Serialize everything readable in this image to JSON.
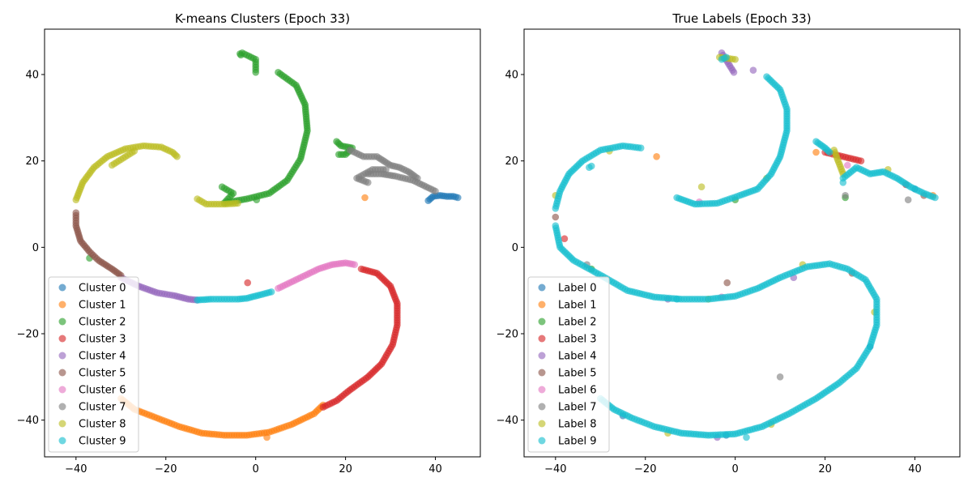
{
  "chart_data": [
    {
      "type": "scatter",
      "title": "K-means Clusters (Epoch 33)",
      "xlabel": "",
      "ylabel": "",
      "xlim": [
        -47,
        50
      ],
      "ylim": [
        -48.5,
        50.5
      ],
      "xticks": [
        -40,
        -20,
        0,
        20,
        40
      ],
      "yticks": [
        -40,
        -20,
        0,
        20,
        40
      ],
      "xtick_labels": [
        "−40",
        "−20",
        "0",
        "20",
        "40"
      ],
      "ytick_labels": [
        "−40",
        "−20",
        "0",
        "20",
        "40"
      ],
      "legend_placement": "lower-left",
      "grid": false,
      "series": [
        {
          "name": "Cluster 0",
          "color": "#1f77b4",
          "points": [
            [
              38.4,
              10.8
            ],
            [
              39.5,
              11.8
            ],
            [
              41,
              12
            ],
            [
              42.5,
              11.8
            ],
            [
              44,
              11.8
            ],
            [
              45,
              11.5
            ]
          ]
        },
        {
          "name": "Cluster 1",
          "color": "#ff7f0e",
          "points": [
            [
              24.3,
              11.5
            ],
            [
              -30,
              -35
            ],
            [
              -27,
              -37.5
            ],
            [
              -22,
              -39.5
            ],
            [
              -17,
              -41.5
            ],
            [
              -12,
              -43
            ],
            [
              -7,
              -43.5
            ],
            [
              -2,
              -43.5
            ],
            [
              3,
              -42.8
            ],
            [
              8,
              -41
            ],
            [
              13,
              -38.5
            ],
            [
              15,
              -36.5
            ],
            [
              2.5,
              -44
            ]
          ]
        },
        {
          "name": "Cluster 2",
          "color": "#2ca02c",
          "points": [
            [
              -3.3,
              44.5
            ],
            [
              -3.5,
              44.8
            ],
            [
              -3,
              45
            ],
            [
              0,
              43.5
            ],
            [
              0,
              40.5
            ],
            [
              -7.5,
              14
            ],
            [
              -5,
              12.5
            ],
            [
              -7,
              10.3
            ],
            [
              -2,
              11.2
            ],
            [
              3,
              12.5
            ],
            [
              7,
              15.5
            ],
            [
              10,
              20.5
            ],
            [
              11.5,
              27
            ],
            [
              11,
              33
            ],
            [
              9,
              37.5
            ],
            [
              5,
              40.5
            ],
            [
              18,
              24.5
            ],
            [
              19,
              23.5
            ],
            [
              21.5,
              23
            ],
            [
              20,
              21.5
            ],
            [
              18.5,
              21.5
            ],
            [
              -37,
              -2.5
            ],
            [
              0.2,
              11
            ]
          ]
        },
        {
          "name": "Cluster 3",
          "color": "#d62728",
          "points": [
            [
              -1.8,
              -8.2
            ],
            [
              23.5,
              -5
            ],
            [
              27,
              -6
            ],
            [
              30,
              -9
            ],
            [
              31.5,
              -13
            ],
            [
              31.5,
              -18
            ],
            [
              30.5,
              -22.5
            ],
            [
              28,
              -27
            ],
            [
              25,
              -30
            ],
            [
              21,
              -33
            ],
            [
              18,
              -35.5
            ],
            [
              15,
              -37
            ]
          ]
        },
        {
          "name": "Cluster 4",
          "color": "#9467bd",
          "points": [
            [
              -30,
              -7
            ],
            [
              -26,
              -9
            ],
            [
              -22,
              -10.5
            ],
            [
              -18,
              -11.2
            ],
            [
              -15,
              -12
            ],
            [
              -13,
              -12.2
            ]
          ]
        },
        {
          "name": "Cluster 5",
          "color": "#8c564b",
          "points": [
            [
              -40,
              8
            ],
            [
              -40,
              5
            ],
            [
              -39,
              1.5
            ],
            [
              -37,
              -1
            ],
            [
              -35,
              -3
            ],
            [
              -32,
              -5
            ],
            [
              -30,
              -6.5
            ]
          ]
        },
        {
          "name": "Cluster 6",
          "color": "#e377c2",
          "points": [
            [
              5,
              -9.5
            ],
            [
              8,
              -8
            ],
            [
              11,
              -6.5
            ],
            [
              14,
              -5
            ],
            [
              17,
              -4
            ],
            [
              20,
              -3.6
            ],
            [
              22,
              -4
            ]
          ]
        },
        {
          "name": "Cluster 7",
          "color": "#7f7f7f",
          "points": [
            [
              21,
              22.5
            ],
            [
              24,
              21
            ],
            [
              27,
              21
            ],
            [
              30,
              19
            ],
            [
              32,
              18.5
            ],
            [
              34,
              17.5
            ],
            [
              36,
              16
            ],
            [
              25,
              17
            ],
            [
              28,
              17
            ],
            [
              31,
              16.5
            ],
            [
              35,
              15.5
            ],
            [
              38,
              14
            ],
            [
              40,
              13
            ],
            [
              25,
              15
            ],
            [
              22.5,
              16
            ],
            [
              26,
              18
            ],
            [
              29,
              18
            ]
          ]
        },
        {
          "name": "Cluster 8",
          "color": "#bcbd22",
          "points": [
            [
              -40,
              11
            ],
            [
              -38.5,
              15
            ],
            [
              -36,
              18.5
            ],
            [
              -33,
              21
            ],
            [
              -29,
              22.8
            ],
            [
              -25,
              23.5
            ],
            [
              -21,
              23.2
            ],
            [
              -18.5,
              22
            ],
            [
              -17.5,
              21
            ],
            [
              -32,
              19
            ],
            [
              -27,
              22.3
            ],
            [
              -13,
              11.2
            ],
            [
              -11,
              10
            ],
            [
              -7,
              10
            ],
            [
              -4,
              10.2
            ]
          ]
        },
        {
          "name": "Cluster 9",
          "color": "#17becf",
          "points": [
            [
              -13,
              -12.2
            ],
            [
              -10,
              -12
            ],
            [
              -7,
              -12
            ],
            [
              -4,
              -12
            ],
            [
              -2,
              -11.8
            ],
            [
              1,
              -11
            ],
            [
              3.5,
              -10.3
            ]
          ]
        }
      ]
    },
    {
      "type": "scatter",
      "title": "True Labels (Epoch 33)",
      "xlabel": "",
      "ylabel": "",
      "xlim": [
        -47,
        50
      ],
      "ylim": [
        -48.5,
        50.5
      ],
      "xticks": [
        -40,
        -20,
        0,
        20,
        40
      ],
      "yticks": [
        -40,
        -20,
        0,
        20,
        40
      ],
      "xtick_labels": [
        "−40",
        "−20",
        "0",
        "20",
        "40"
      ],
      "ytick_labels": [
        "−40",
        "−20",
        "0",
        "20",
        "40"
      ],
      "legend_placement": "lower-left",
      "grid": false,
      "series": [
        {
          "name": "Label 0",
          "color": "#1f77b4",
          "points": [
            [
              -2,
              -43.5
            ],
            [
              30,
              -23
            ],
            [
              -25,
              -39
            ],
            [
              40,
              13.5
            ]
          ]
        },
        {
          "name": "Label 1",
          "color": "#ff7f0e",
          "points": [
            [
              18,
              22
            ],
            [
              -17.5,
              21
            ],
            [
              44,
              12
            ]
          ]
        },
        {
          "name": "Label 2",
          "color": "#2ca02c",
          "points": [
            [
              0,
              11
            ],
            [
              24.5,
              11.5
            ],
            [
              -32,
              -5
            ]
          ]
        },
        {
          "name": "Label 3",
          "color": "#d62728",
          "points": [
            [
              20,
              22
            ],
            [
              28,
              20
            ],
            [
              38,
              14.5
            ],
            [
              -38,
              2
            ]
          ]
        },
        {
          "name": "Label 4",
          "color": "#9467bd",
          "points": [
            [
              -3,
              45
            ],
            [
              -0.3,
              40.5
            ],
            [
              -4,
              -44
            ],
            [
              -15,
              -12
            ],
            [
              13,
              -7
            ],
            [
              4,
              41
            ]
          ]
        },
        {
          "name": "Label 5",
          "color": "#8c564b",
          "points": [
            [
              -1.8,
              -8.2
            ],
            [
              -40,
              7
            ],
            [
              26,
              -6
            ],
            [
              42,
              12
            ]
          ]
        },
        {
          "name": "Label 6",
          "color": "#e377c2",
          "points": [
            [
              -3,
              -11.5
            ],
            [
              -8,
              10.5
            ],
            [
              25,
              19
            ]
          ]
        },
        {
          "name": "Label 7",
          "color": "#7f7f7f",
          "points": [
            [
              -33,
              -4
            ],
            [
              10,
              -30
            ],
            [
              24.5,
              12
            ],
            [
              38.5,
              11
            ]
          ]
        },
        {
          "name": "Label 8",
          "color": "#bcbd22",
          "points": [
            [
              -3.5,
              44
            ],
            [
              0,
              43.5
            ],
            [
              -7.5,
              14
            ],
            [
              -28,
              22.3
            ],
            [
              7,
              16
            ],
            [
              -40,
              12
            ],
            [
              24,
              17
            ],
            [
              22,
              22.5
            ],
            [
              34,
              18
            ],
            [
              -6,
              -12
            ],
            [
              15,
              -4
            ],
            [
              31,
              -15
            ],
            [
              8,
              -41
            ],
            [
              -15,
              -43
            ]
          ]
        },
        {
          "name": "Label 9",
          "color": "#17becf",
          "points": [
            [
              -40,
              9
            ],
            [
              -39,
              13
            ],
            [
              -37,
              17
            ],
            [
              -34,
              20
            ],
            [
              -30,
              22.5
            ],
            [
              -25,
              23.5
            ],
            [
              -21,
              23
            ],
            [
              -32.5,
              18.5
            ],
            [
              -40,
              5
            ],
            [
              -39,
              0
            ],
            [
              -36,
              -3
            ],
            [
              -29,
              -7
            ],
            [
              -24,
              -10
            ],
            [
              -18,
              -11.5
            ],
            [
              -12,
              -12
            ],
            [
              -6,
              -12
            ],
            [
              0,
              -11.3
            ],
            [
              5,
              -9.5
            ],
            [
              10,
              -7
            ],
            [
              16,
              -4.5
            ],
            [
              21,
              -3.8
            ],
            [
              25,
              -5
            ],
            [
              29,
              -7.5
            ],
            [
              31.5,
              -12
            ],
            [
              31.5,
              -18
            ],
            [
              30,
              -23
            ],
            [
              27,
              -28
            ],
            [
              23,
              -31.5
            ],
            [
              18,
              -35
            ],
            [
              12,
              -38.5
            ],
            [
              6,
              -41.5
            ],
            [
              0,
              -43.2
            ],
            [
              -6,
              -43.5
            ],
            [
              -12,
              -43
            ],
            [
              -18,
              -41.5
            ],
            [
              -23,
              -39.5
            ],
            [
              -27,
              -37.5
            ],
            [
              -30,
              -35
            ],
            [
              -13,
              11.5
            ],
            [
              -9,
              10
            ],
            [
              -4,
              10.2
            ],
            [
              1,
              12
            ],
            [
              5,
              13.5
            ],
            [
              8,
              17
            ],
            [
              10,
              21
            ],
            [
              11.5,
              27
            ],
            [
              11.5,
              32
            ],
            [
              10,
              36.5
            ],
            [
              7,
              39.5
            ],
            [
              -2,
              44
            ],
            [
              -3,
              43.5
            ],
            [
              24,
              16
            ],
            [
              27,
              18.5
            ],
            [
              30,
              17
            ],
            [
              33,
              17.5
            ],
            [
              36,
              16
            ],
            [
              39,
              14
            ],
            [
              42,
              12.5
            ],
            [
              44.5,
              11.5
            ],
            [
              18,
              24.5
            ],
            [
              20,
              23
            ],
            [
              21,
              22
            ],
            [
              2.5,
              -44
            ],
            [
              -32,
              18.8
            ],
            [
              -13,
              -12
            ],
            [
              24,
              15
            ]
          ]
        }
      ]
    }
  ]
}
